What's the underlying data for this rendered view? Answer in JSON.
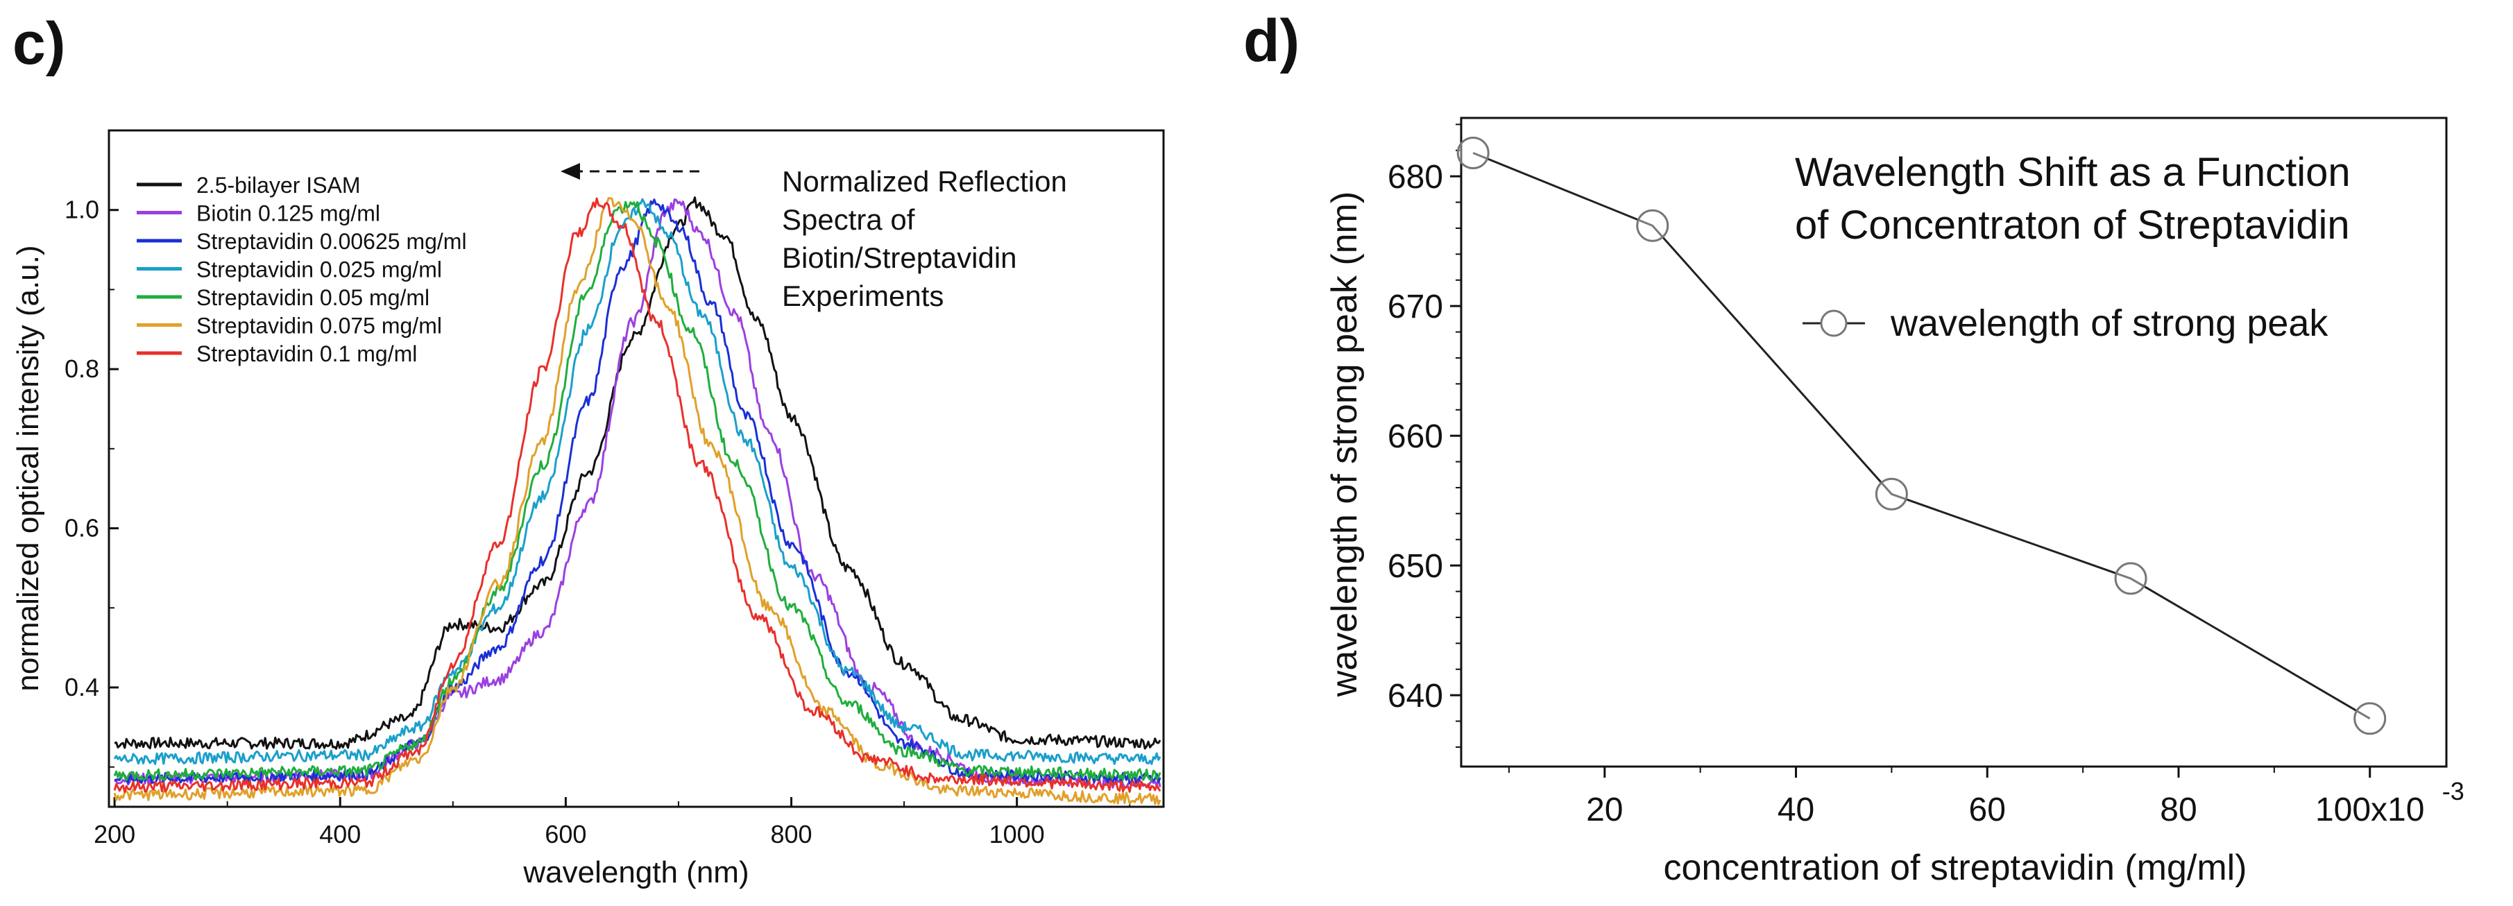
{
  "panels": {
    "c_label": "c)",
    "d_label": "d)"
  },
  "chart_data": [
    {
      "type": "line",
      "panel": "c",
      "title": "Normalized Reflection Spectra of Biotin/Streptavidin Experiments",
      "title_lines": [
        "Normalized Reflection",
        "Spectra of",
        "Biotin/Streptavidin",
        "Experiments"
      ],
      "xlabel": "wavelength (nm)",
      "ylabel": "normalized optical intensity (a.u.)",
      "xlim": [
        195,
        1130
      ],
      "ylim": [
        0.25,
        1.1
      ],
      "xticks": [
        200,
        400,
        600,
        800,
        1000
      ],
      "xtick_labels": [
        "200",
        "400",
        "600",
        "800",
        "1000"
      ],
      "yticks": [
        0.4,
        0.6,
        0.8,
        1.0
      ],
      "ytick_labels": [
        "0.4",
        "0.6",
        "0.8",
        "1.0"
      ],
      "legend_position": "top-left",
      "annotation": "arrow pointing left (blue shift of peak)",
      "series": [
        {
          "name": "2.5-bilayer ISAM",
          "color": "#111111",
          "baseline": 0.33,
          "tail": 0.33,
          "peak_x": 715,
          "peak_y": 1.01,
          "width_left": 110,
          "width_right": 150,
          "shoulder_x": 510,
          "shoulder_y": 0.48,
          "points": [
            [
              200,
              0.33
            ],
            [
              400,
              0.33
            ],
            [
              460,
              0.36
            ],
            [
              500,
              0.48
            ],
            [
              540,
              0.475
            ],
            [
              580,
              0.53
            ],
            [
              620,
              0.67
            ],
            [
              660,
              0.84
            ],
            [
              700,
              0.98
            ],
            [
              715,
              1.01
            ],
            [
              740,
              0.97
            ],
            [
              770,
              0.86
            ],
            [
              800,
              0.74
            ],
            [
              850,
              0.55
            ],
            [
              900,
              0.43
            ],
            [
              950,
              0.36
            ],
            [
              1000,
              0.335
            ],
            [
              1130,
              0.33
            ]
          ]
        },
        {
          "name": "Biotin 0.125 mg/ml",
          "color": "#9b3fe0",
          "baseline": 0.285,
          "tail": 0.28,
          "points": [
            [
              200,
              0.285
            ],
            [
              420,
              0.29
            ],
            [
              470,
              0.33
            ],
            [
              500,
              0.39
            ],
            [
              540,
              0.41
            ],
            [
              580,
              0.47
            ],
            [
              620,
              0.63
            ],
            [
              660,
              0.86
            ],
            [
              690,
              1.0
            ],
            [
              700,
              1.01
            ],
            [
              720,
              0.97
            ],
            [
              750,
              0.87
            ],
            [
              780,
              0.72
            ],
            [
              820,
              0.54
            ],
            [
              870,
              0.4
            ],
            [
              920,
              0.32
            ],
            [
              980,
              0.285
            ],
            [
              1130,
              0.28
            ]
          ]
        },
        {
          "name": "Streptavidin 0.00625 mg/ml",
          "color": "#1a2fd6",
          "baseline": 0.285,
          "tail": 0.285,
          "points": [
            [
              200,
              0.285
            ],
            [
              420,
              0.29
            ],
            [
              470,
              0.33
            ],
            [
              500,
              0.4
            ],
            [
              540,
              0.45
            ],
            [
              580,
              0.56
            ],
            [
              620,
              0.76
            ],
            [
              650,
              0.93
            ],
            [
              680,
              1.01
            ],
            [
              700,
              0.98
            ],
            [
              730,
              0.88
            ],
            [
              760,
              0.74
            ],
            [
              800,
              0.58
            ],
            [
              850,
              0.42
            ],
            [
              900,
              0.33
            ],
            [
              960,
              0.29
            ],
            [
              1130,
              0.285
            ]
          ]
        },
        {
          "name": "Streptavidin 0.025 mg/ml",
          "color": "#1a9fcc",
          "baseline": 0.31,
          "tail": 0.31,
          "points": [
            [
              200,
              0.31
            ],
            [
              420,
              0.315
            ],
            [
              470,
              0.35
            ],
            [
              500,
              0.42
            ],
            [
              540,
              0.5
            ],
            [
              580,
              0.64
            ],
            [
              620,
              0.85
            ],
            [
              650,
              0.98
            ],
            [
              670,
              1.01
            ],
            [
              690,
              0.97
            ],
            [
              720,
              0.87
            ],
            [
              760,
              0.71
            ],
            [
              800,
              0.55
            ],
            [
              850,
              0.42
            ],
            [
              900,
              0.35
            ],
            [
              960,
              0.315
            ],
            [
              1130,
              0.31
            ]
          ]
        },
        {
          "name": "Streptavidin 0.05 mg/ml",
          "color": "#1fae3c",
          "baseline": 0.29,
          "tail": 0.29,
          "points": [
            [
              200,
              0.29
            ],
            [
              420,
              0.295
            ],
            [
              470,
              0.33
            ],
            [
              500,
              0.41
            ],
            [
              540,
              0.52
            ],
            [
              580,
              0.68
            ],
            [
              620,
              0.9
            ],
            [
              645,
              1.0
            ],
            [
              660,
              1.01
            ],
            [
              680,
              0.96
            ],
            [
              710,
              0.85
            ],
            [
              750,
              0.68
            ],
            [
              800,
              0.5
            ],
            [
              850,
              0.38
            ],
            [
              900,
              0.32
            ],
            [
              960,
              0.295
            ],
            [
              1130,
              0.29
            ]
          ]
        },
        {
          "name": "Streptavidin 0.075 mg/ml",
          "color": "#e0a02a",
          "baseline": 0.265,
          "tail": 0.26,
          "points": [
            [
              200,
              0.265
            ],
            [
              420,
              0.27
            ],
            [
              470,
              0.31
            ],
            [
              500,
              0.4
            ],
            [
              540,
              0.53
            ],
            [
              580,
              0.71
            ],
            [
              610,
              0.9
            ],
            [
              640,
              1.01
            ],
            [
              660,
              0.99
            ],
            [
              690,
              0.88
            ],
            [
              730,
              0.7
            ],
            [
              780,
              0.5
            ],
            [
              830,
              0.37
            ],
            [
              880,
              0.3
            ],
            [
              940,
              0.27
            ],
            [
              1130,
              0.26
            ]
          ]
        },
        {
          "name": "Streptavidin 0.1 mg/ml",
          "color": "#e8302a",
          "baseline": 0.275,
          "tail": 0.275,
          "points": [
            [
              200,
              0.275
            ],
            [
              420,
              0.28
            ],
            [
              470,
              0.32
            ],
            [
              500,
              0.43
            ],
            [
              540,
              0.58
            ],
            [
              580,
              0.8
            ],
            [
              610,
              0.97
            ],
            [
              630,
              1.01
            ],
            [
              650,
              0.98
            ],
            [
              680,
              0.86
            ],
            [
              720,
              0.68
            ],
            [
              770,
              0.49
            ],
            [
              820,
              0.37
            ],
            [
              870,
              0.31
            ],
            [
              930,
              0.285
            ],
            [
              1130,
              0.275
            ]
          ]
        }
      ]
    },
    {
      "type": "line",
      "panel": "d",
      "title": "Wavelength Shift as a Function of Concentraton of Streptavidin",
      "title_lines": [
        "Wavelength Shift as a Function",
        "of Concentraton of Streptavidin"
      ],
      "xlabel": "concentration of streptavidin (mg/ml)",
      "ylabel": "wavelength of strong peak (nm)",
      "xlim": [
        5,
        108
      ],
      "ylim": [
        634.5,
        684.5
      ],
      "xticks": [
        20,
        40,
        60,
        80,
        100
      ],
      "xtick_labels": [
        "20",
        "40",
        "60",
        "80",
        "100x10"
      ],
      "x_exponent": "-3",
      "yticks": [
        640,
        650,
        660,
        670,
        680
      ],
      "ytick_labels": [
        "640",
        "650",
        "660",
        "670",
        "680"
      ],
      "legend_position": "upper-right",
      "series": [
        {
          "name": "wavelength of strong peak",
          "color": "#222222",
          "marker": "circle",
          "x": [
            6.25,
            25,
            50,
            75,
            100
          ],
          "y": [
            681.8,
            676.2,
            655.5,
            649.0,
            638.2
          ]
        }
      ]
    }
  ]
}
